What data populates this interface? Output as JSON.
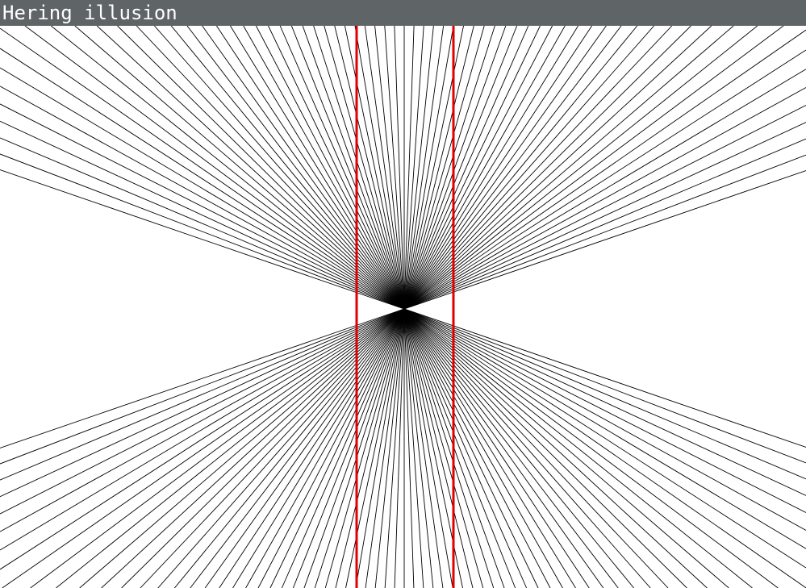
{
  "window": {
    "title": "Hering illusion"
  },
  "illusion": {
    "ray_color": "#000000",
    "parallel_line_color": "#e00000",
    "background_color": "#ffffff",
    "titlebar_color": "#5f6466"
  }
}
